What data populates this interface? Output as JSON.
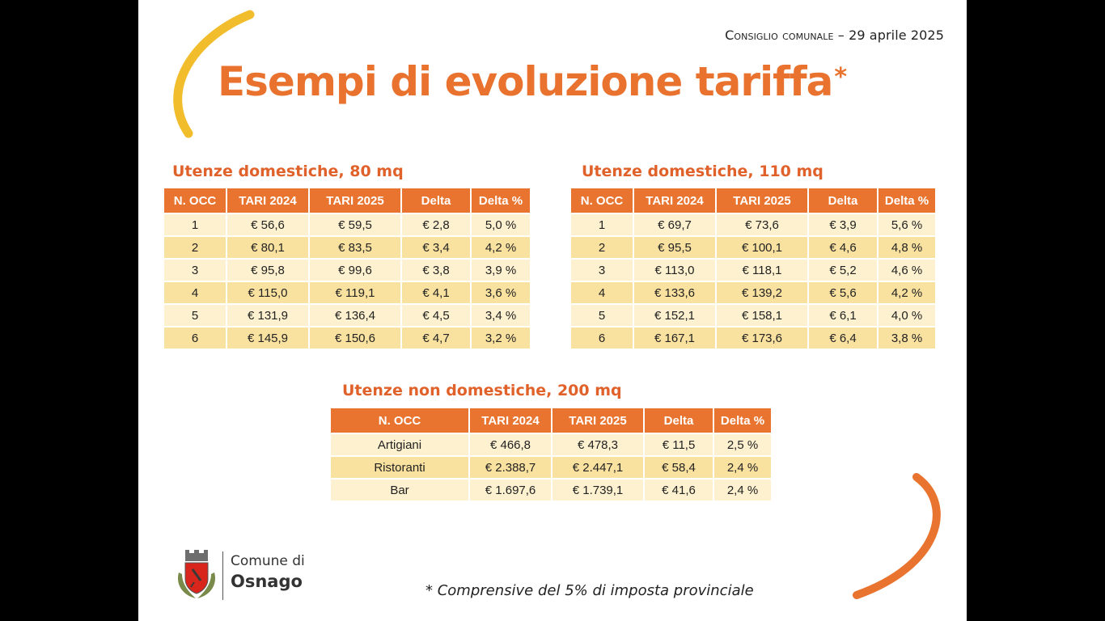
{
  "header": {
    "event": "Consiglio comunale",
    "date": "– 29 aprile 2025"
  },
  "title": {
    "text": "Esempi di evoluzione tariffa",
    "marker": "*"
  },
  "columns": [
    "N. OCC",
    "TARI 2024",
    "TARI 2025",
    "Delta",
    "Delta %"
  ],
  "tables": {
    "domestic80": {
      "title": "Utenze domestiche, 80 mq",
      "rows": [
        [
          "1",
          "€ 56,6",
          "€ 59,5",
          "€ 2,8",
          "5,0 %"
        ],
        [
          "2",
          "€ 80,1",
          "€ 83,5",
          "€ 3,4",
          "4,2 %"
        ],
        [
          "3",
          "€ 95,8",
          "€ 99,6",
          "€ 3,8",
          "3,9 %"
        ],
        [
          "4",
          "€ 115,0",
          "€ 119,1",
          "€ 4,1",
          "3,6 %"
        ],
        [
          "5",
          "€ 131,9",
          "€ 136,4",
          "€ 4,5",
          "3,4 %"
        ],
        [
          "6",
          "€ 145,9",
          "€ 150,6",
          "€ 4,7",
          "3,2 %"
        ]
      ]
    },
    "domestic110": {
      "title": "Utenze domestiche, 110 mq",
      "rows": [
        [
          "1",
          "€ 69,7",
          "€ 73,6",
          "€ 3,9",
          "5,6 %"
        ],
        [
          "2",
          "€ 95,5",
          "€ 100,1",
          "€ 4,6",
          "4,8 %"
        ],
        [
          "3",
          "€ 113,0",
          "€ 118,1",
          "€ 5,2",
          "4,6 %"
        ],
        [
          "4",
          "€ 133,6",
          "€ 139,2",
          "€ 5,6",
          "4,2 %"
        ],
        [
          "5",
          "€ 152,1",
          "€ 158,1",
          "€ 6,1",
          "4,0 %"
        ],
        [
          "6",
          "€ 167,1",
          "€ 173,6",
          "€ 6,4",
          "3,8 %"
        ]
      ]
    },
    "nondomestic200": {
      "title": "Utenze non domestiche, 200 mq",
      "rows": [
        [
          "Artigiani",
          "€ 466,8",
          "€ 478,3",
          "€ 11,5",
          "2,5 %"
        ],
        [
          "Ristoranti",
          "€ 2.388,7",
          "€ 2.447,1",
          "€ 58,4",
          "2,4 %"
        ],
        [
          "Bar",
          "€ 1.697,6",
          "€ 1.739,1",
          "€ 41,6",
          "2,4 %"
        ]
      ]
    }
  },
  "logo": {
    "line1": "Comune di",
    "line2": "Osnago",
    "emblem": "coat-of-arms-icon"
  },
  "footnote": "* Comprensive del 5% di imposta provinciale",
  "colors": {
    "accent_orange": "#e9742f",
    "title_orange": "#e8722e",
    "arc_yellow": "#f2bd2c",
    "row_light": "#fdf1cf",
    "row_dark": "#f9e1a0"
  }
}
